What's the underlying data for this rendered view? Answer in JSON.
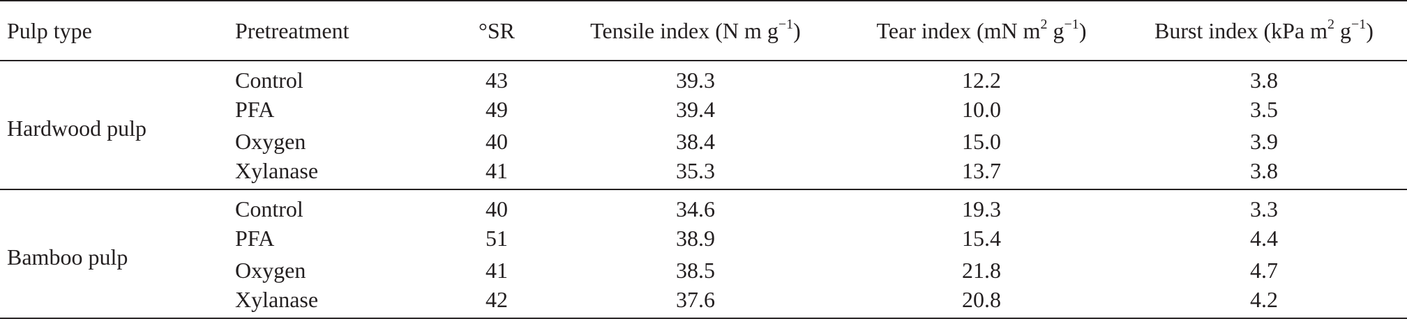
{
  "table": {
    "headers": {
      "pulp_type": "Pulp type",
      "pretreatment": "Pretreatment",
      "sr": "°SR",
      "tensile": {
        "label": "Tensile index (N m g",
        "sup": "−1",
        "close": ")"
      },
      "tear": {
        "label": "Tear index (mN m",
        "sup1": "2",
        "mid": " g",
        "sup2": "−1",
        "close": ")"
      },
      "burst": {
        "label": "Burst index (kPa m",
        "sup1": "2",
        "mid": " g",
        "sup2": "−1",
        "close": ")"
      }
    },
    "groups": [
      {
        "pulp_type": "Hardwood pulp",
        "rows": [
          {
            "pretreatment": "Control",
            "sr": "43",
            "tensile": "39.3",
            "tear": "12.2",
            "burst": "3.8"
          },
          {
            "pretreatment": "PFA",
            "sr": "49",
            "tensile": "39.4",
            "tear": "10.0",
            "burst": "3.5"
          },
          {
            "pretreatment": "Oxygen",
            "sr": "40",
            "tensile": "38.4",
            "tear": "15.0",
            "burst": "3.9"
          },
          {
            "pretreatment": "Xylanase",
            "sr": "41",
            "tensile": "35.3",
            "tear": "13.7",
            "burst": "3.8"
          }
        ]
      },
      {
        "pulp_type": "Bamboo pulp",
        "rows": [
          {
            "pretreatment": "Control",
            "sr": "40",
            "tensile": "34.6",
            "tear": "19.3",
            "burst": "3.3"
          },
          {
            "pretreatment": "PFA",
            "sr": "51",
            "tensile": "38.9",
            "tear": "15.4",
            "burst": "4.4"
          },
          {
            "pretreatment": "Oxygen",
            "sr": "41",
            "tensile": "38.5",
            "tear": "21.8",
            "burst": "4.7"
          },
          {
            "pretreatment": "Xylanase",
            "sr": "42",
            "tensile": "37.6",
            "tear": "20.8",
            "burst": "4.2"
          }
        ]
      }
    ]
  }
}
